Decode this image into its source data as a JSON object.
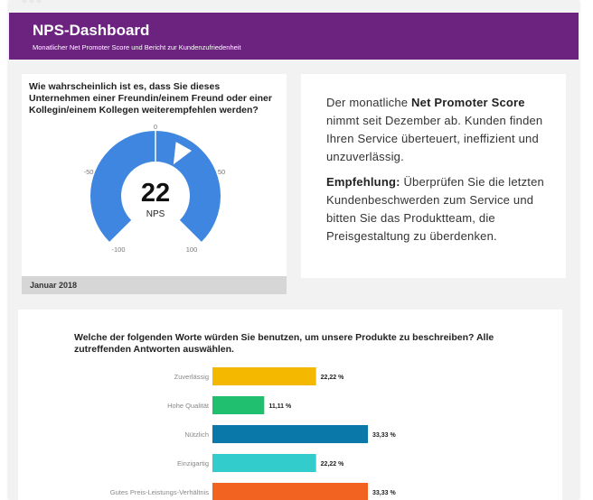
{
  "header": {
    "title": "NPS-Dashboard",
    "subtitle": "Monatlicher Net Promoter Score und Bericht zur Kundenzufriedenheit",
    "bg_color": "#6c237f"
  },
  "nps": {
    "question": "Wie wahrscheinlich ist es, dass Sie dieses Unternehmen einer Freundin/einem Freund oder einer Kollegin/einem Kollegen weiterempfehlen werden?",
    "score": "22",
    "score_label": "NPS",
    "scale_labels": [
      "-100",
      "-50",
      "0",
      "50",
      "100"
    ],
    "footer": "Januar 2018",
    "gauge_color": "#3f86e0"
  },
  "summary": {
    "p1_before": "Der monatliche ",
    "p1_bold": "Net Promoter Score",
    "p1_after": " nimmt seit Dezember ab. Kunden finden Ihren Service überteuert, ineffizient und unzuverlässig.",
    "p2_bold": "Empfehlung:",
    "p2_after": " Überprüfen Sie die letzten Kundenbeschwerden zum Service und bitten Sie das Produktteam, die Preisgestaltung zu überdenken."
  },
  "words_chart": {
    "question": "Welche der folgenden Worte würden Sie benutzen, um unsere Produkte zu beschreiben? Alle zutreffenden Antworten auswählen."
  },
  "chart_data": {
    "type": "bar",
    "orientation": "horizontal",
    "categories": [
      "Zuverlässig",
      "Hohe Qualität",
      "Nützlich",
      "Einzigartig",
      "Gutes Preis-Leistungs-Verhältnis"
    ],
    "values": [
      22.22,
      11.11,
      33.33,
      22.22,
      33.33
    ],
    "value_labels": [
      "22,22 %",
      "11,11 %",
      "33,33 %",
      "22,22 %",
      "33,33 %"
    ],
    "colors": [
      "#f5b800",
      "#1fbf6f",
      "#0a78a8",
      "#33cccc",
      "#f26322"
    ],
    "xlim": [
      0,
      33.33
    ]
  }
}
